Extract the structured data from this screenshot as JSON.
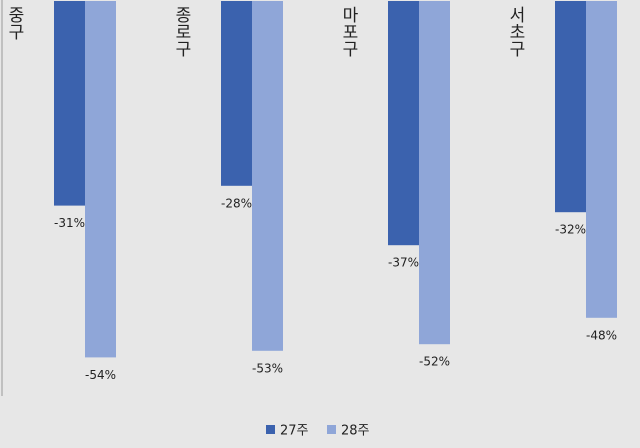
{
  "chart_data": {
    "type": "bar",
    "categories": [
      "중구",
      "종로구",
      "마포구",
      "서초구"
    ],
    "series": [
      {
        "name": "27주",
        "color": "#3b62ae",
        "values": [
          -31,
          -28,
          -37,
          -32
        ],
        "value_labels": [
          "-31%",
          "-28%",
          "-37%",
          "-32%"
        ]
      },
      {
        "name": "28주",
        "color": "#8fa6d8",
        "values": [
          -54,
          -53,
          -52,
          -48
        ],
        "value_labels": [
          "-54%",
          "-53%",
          "-52%",
          "-48%"
        ]
      }
    ]
  }
}
